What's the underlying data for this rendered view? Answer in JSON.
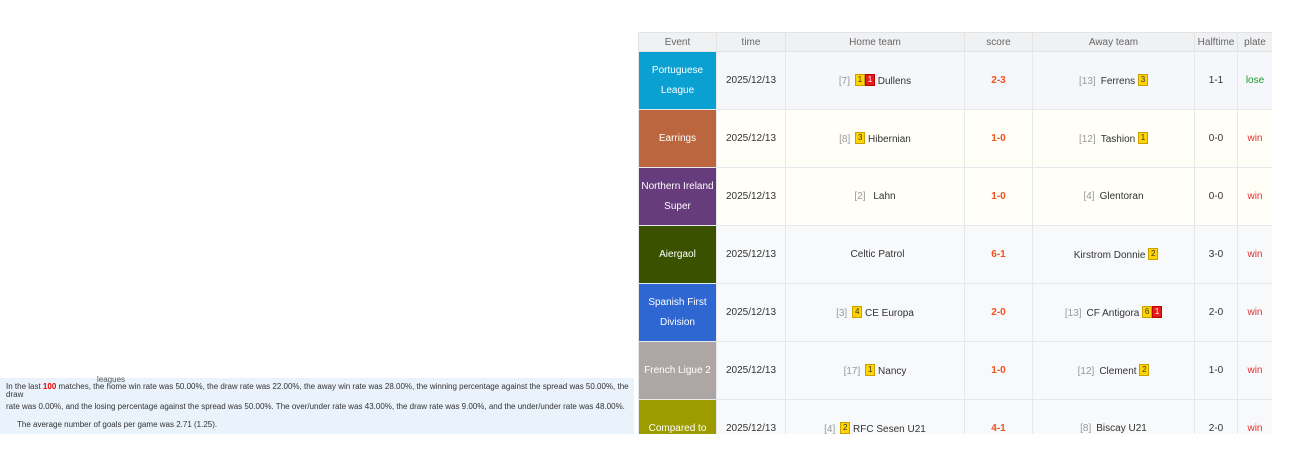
{
  "summary": {
    "leagues": "leagues",
    "p1a": "In the last ",
    "count": "100",
    "p1b": " matches, the home win rate was 50.00%, the draw rate was 22.00%,      the away win rate was 28.00%, the winning percentage against the spread was 50.00%, the draw",
    "p2": "rate was 0.00%, and the losing percentage against the spread was 50.00%.      The over/under rate was 43.00%, the draw rate was 9.00%, and the under/under rate was 48.00%.",
    "p3": "The average number of goals per game was 2.71 (1.25)."
  },
  "headers": [
    "Event",
    "time",
    "Home team",
    "score",
    "Away team",
    "Halftime",
    "plate"
  ],
  "rows": [
    {
      "event": "Portuguese League",
      "color": "#0aa0d2",
      "time": "2025/12/13",
      "home_rank": "[7]",
      "home_badges": [
        {
          "t": "1",
          "c": "y"
        },
        {
          "t": "1",
          "c": "r"
        }
      ],
      "home": "Dullens",
      "score": "2-3",
      "away_rank": "[13]",
      "away": "Ferrens",
      "away_badges": [
        {
          "t": "3",
          "c": "y"
        }
      ],
      "ht": "1-1",
      "plate": "lose",
      "bg": "a"
    },
    {
      "event": "Earrings",
      "color": "#bc6640",
      "time": "2025/12/13",
      "home_rank": "[8]",
      "home_badges": [
        {
          "t": "3",
          "c": "y"
        }
      ],
      "home": "Hibernian",
      "score": "1-0",
      "away_rank": "[12]",
      "away": "Tashion",
      "away_badges": [
        {
          "t": "1",
          "c": "y"
        }
      ],
      "ht": "0-0",
      "plate": "win",
      "bg": "b"
    },
    {
      "event": "Northern Ireland Super",
      "color": "#663c7c",
      "time": "2025/12/13",
      "home_rank": "[2]",
      "home_badges": [],
      "home": "Lahn",
      "score": "1-0",
      "away_rank": "[4]",
      "away": "Glentoran",
      "away_badges": [],
      "ht": "0-0",
      "plate": "win",
      "bg": "b"
    },
    {
      "event": "Aiergaol",
      "color": "#3a5200",
      "time": "2025/12/13",
      "home_rank": "",
      "home_badges": [],
      "home": "Celtic Patrol",
      "score": "6-1",
      "away_rank": "",
      "away": "Kirstrom Donnie",
      "away_badges": [
        {
          "t": "2",
          "c": "y"
        }
      ],
      "ht": "3-0",
      "plate": "win",
      "bg": "c"
    },
    {
      "event": "Spanish First Division",
      "color": "#2e66d2",
      "time": "2025/12/13",
      "home_rank": "[3]",
      "home_badges": [
        {
          "t": "4",
          "c": "y"
        }
      ],
      "home": "CE Europa",
      "score": "2-0",
      "away_rank": "[13]",
      "away": "CF Antigora",
      "away_badges": [
        {
          "t": "6",
          "c": "y"
        },
        {
          "t": "1",
          "c": "r"
        }
      ],
      "ht": "2-0",
      "plate": "win",
      "bg": "c"
    },
    {
      "event": "French Ligue 2",
      "color": "#aea6a4",
      "time": "2025/12/13",
      "home_rank": "[17]",
      "home_badges": [
        {
          "t": "1",
          "c": "y"
        }
      ],
      "home": "Nancy",
      "score": "1-0",
      "away_rank": "[12]",
      "away": "Clement",
      "away_badges": [
        {
          "t": "2",
          "c": "y"
        }
      ],
      "ht": "1-0",
      "plate": "win",
      "bg": "c"
    },
    {
      "event": "Compared to",
      "color": "#9c9c00",
      "time": "2025/12/13",
      "home_rank": "[4]",
      "home_badges": [
        {
          "t": "2",
          "c": "y"
        }
      ],
      "home": "RFC Sesen U21",
      "score": "4-1",
      "away_rank": "[8]",
      "away": "Biscay U21",
      "away_badges": [],
      "ht": "2-0",
      "plate": "win",
      "bg": "c"
    }
  ]
}
